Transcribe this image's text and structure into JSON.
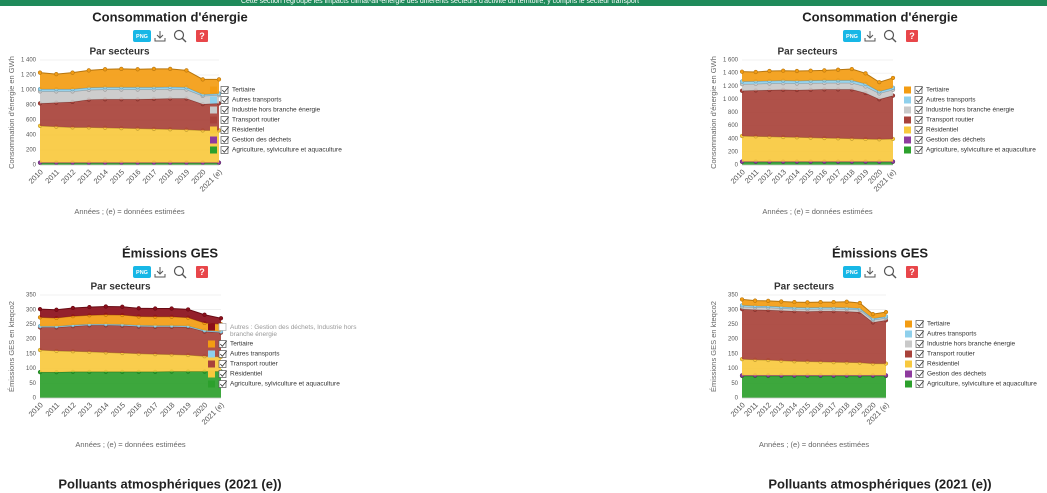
{
  "banner": "Cette section regroupe les impacts climat-air-énergie des différents secteurs d'activité du territoire, y compris le secteur transport",
  "toolbar": {
    "png": "PNG",
    "help": "?"
  },
  "next_sections": [
    "Polluants atmosphériques (2021 (e))",
    "Polluants atmosphériques (2021 (e))"
  ],
  "chart_data": [
    {
      "type": "area",
      "stacked": true,
      "legend": "right",
      "section_title": "Consommation d'énergie",
      "title": "Par secteurs",
      "y_label": "Consommation d'énergie en GWh",
      "x_label": "Années ; (e) = données estimées",
      "categories": [
        "2010",
        "2011",
        "2012",
        "2013",
        "2014",
        "2015",
        "2016",
        "2017",
        "2018",
        "2019",
        "2020",
        "2021 (e)"
      ],
      "ylim": [
        0,
        1400
      ],
      "yticks": [
        0,
        200,
        400,
        600,
        800,
        {
          "value": 1000,
          "label": "1 000"
        },
        {
          "value": 1200,
          "label": "1 200"
        },
        {
          "value": 1400,
          "label": "1 400"
        }
      ],
      "series": [
        {
          "name": "Tertiaire",
          "color": "#f39c12",
          "checked": true,
          "values": [
            220,
            200,
            220,
            230,
            240,
            245,
            240,
            245,
            240,
            225,
            200,
            190
          ]
        },
        {
          "name": "Autres transports",
          "color": "#8fd0ec",
          "checked": true,
          "values": [
            30,
            30,
            30,
            30,
            30,
            30,
            30,
            30,
            30,
            30,
            20,
            20
          ]
        },
        {
          "name": "Industrie hors branche énergie",
          "color": "#c9c9c9",
          "checked": true,
          "values": [
            160,
            150,
            140,
            130,
            130,
            130,
            130,
            125,
            125,
            120,
            110,
            110
          ]
        },
        {
          "name": "Transport routier",
          "color": "#a8423a",
          "checked": true,
          "values": [
            300,
            320,
            340,
            370,
            380,
            385,
            390,
            400,
            410,
            415,
            350,
            360
          ]
        },
        {
          "name": "Résidentiel",
          "color": "#f8c93e",
          "checked": true,
          "values": [
            490,
            480,
            470,
            470,
            465,
            460,
            455,
            450,
            445,
            440,
            430,
            430
          ]
        },
        {
          "name": "Gestion des déchets",
          "color": "#8e3a9e",
          "checked": true,
          "values": [
            2,
            2,
            2,
            2,
            2,
            2,
            2,
            2,
            2,
            2,
            2,
            2
          ]
        },
        {
          "name": "Agriculture, sylviculture et aquaculture",
          "color": "#2ca02c",
          "checked": true,
          "values": [
            30,
            30,
            30,
            30,
            30,
            30,
            30,
            30,
            30,
            30,
            30,
            30
          ]
        }
      ]
    },
    {
      "type": "area",
      "stacked": true,
      "legend": "right",
      "section_title": "Consommation d'énergie",
      "title": "Par secteurs",
      "y_label": "Consommation d'énergie en GWh",
      "x_label": "Années ; (e) = données estimées",
      "categories": [
        "2010",
        "2011",
        "2012",
        "2013",
        "2014",
        "2015",
        "2016",
        "2017",
        "2018",
        "2019",
        "2020",
        "2021 (e)"
      ],
      "ylim": [
        0,
        1600
      ],
      "yticks": [
        0,
        200,
        400,
        600,
        800,
        {
          "value": 1000,
          "label": "1 000"
        },
        {
          "value": 1200,
          "label": "1 200"
        },
        {
          "value": 1400,
          "label": "1 400"
        },
        {
          "value": 1600,
          "label": "1 600"
        }
      ],
      "series": [
        {
          "name": "Tertiaire",
          "color": "#f39c12",
          "checked": true,
          "values": [
            150,
            140,
            150,
            150,
            150,
            150,
            150,
            160,
            170,
            160,
            140,
            150
          ]
        },
        {
          "name": "Autres transports",
          "color": "#8fd0ec",
          "checked": true,
          "values": [
            40,
            40,
            40,
            40,
            40,
            40,
            40,
            40,
            40,
            40,
            30,
            30
          ]
        },
        {
          "name": "Industrie hors branche énergie",
          "color": "#c9c9c9",
          "checked": true,
          "values": [
            100,
            100,
            100,
            100,
            100,
            100,
            100,
            100,
            100,
            100,
            90,
            90
          ]
        },
        {
          "name": "Transport routier",
          "color": "#a8423a",
          "checked": true,
          "values": [
            690,
            700,
            710,
            720,
            720,
            730,
            740,
            745,
            750,
            700,
            610,
            660
          ]
        },
        {
          "name": "Résidentiel",
          "color": "#f8c93e",
          "checked": true,
          "values": [
            390,
            385,
            380,
            375,
            370,
            365,
            360,
            355,
            350,
            345,
            340,
            345
          ]
        },
        {
          "name": "Gestion des déchets",
          "color": "#8e3a9e",
          "checked": true,
          "values": [
            2,
            2,
            2,
            2,
            2,
            2,
            2,
            2,
            2,
            2,
            2,
            2
          ]
        },
        {
          "name": "Agriculture, sylviculture et aquaculture",
          "color": "#2ca02c",
          "checked": true,
          "values": [
            50,
            50,
            50,
            50,
            50,
            50,
            50,
            50,
            50,
            50,
            50,
            50
          ]
        }
      ]
    },
    {
      "type": "area",
      "stacked": true,
      "legend": "right",
      "section_title": "Émissions GES",
      "title": "Par secteurs",
      "y_label": "Émissions GES en kteqco2",
      "x_label": "Années ; (e) = données estimées",
      "categories": [
        "2010",
        "2011",
        "2012",
        "2013",
        "2014",
        "2015",
        "2016",
        "2017",
        "2018",
        "2019",
        "2020",
        "2021 (e)"
      ],
      "ylim": [
        0,
        350
      ],
      "yticks": [
        0,
        50,
        100,
        150,
        200,
        250,
        300,
        350
      ],
      "series": [
        {
          "name": "Autres : Gestion des déchets, Industrie hors branche énergie",
          "color": "#8b0e1a",
          "checked": false,
          "values": [
            28,
            28,
            28,
            28,
            28,
            28,
            28,
            28,
            28,
            28,
            28,
            20
          ]
        },
        {
          "name": "Tertiaire",
          "color": "#f39c12",
          "checked": true,
          "values": [
            30,
            28,
            30,
            30,
            32,
            32,
            30,
            30,
            30,
            28,
            25,
            25
          ]
        },
        {
          "name": "Autres transports",
          "color": "#8fd0ec",
          "checked": true,
          "values": [
            4,
            4,
            4,
            4,
            4,
            4,
            4,
            4,
            4,
            4,
            4,
            4
          ]
        },
        {
          "name": "Transport routier",
          "color": "#a8423a",
          "checked": true,
          "values": [
            77,
            80,
            85,
            90,
            92,
            93,
            92,
            93,
            94,
            95,
            84,
            82
          ]
        },
        {
          "name": "Résidentiel",
          "color": "#f8c93e",
          "checked": true,
          "values": [
            75,
            72,
            70,
            68,
            66,
            64,
            62,
            60,
            58,
            56,
            52,
            50
          ]
        },
        {
          "name": "Agriculture, sylviculture et aquaculture",
          "color": "#2ca02c",
          "checked": true,
          "values": [
            88,
            88,
            89,
            89,
            89,
            89,
            89,
            89,
            90,
            90,
            90,
            90
          ]
        }
      ]
    },
    {
      "type": "area",
      "stacked": true,
      "legend": "right",
      "section_title": "Émissions GES",
      "title": "Par secteurs",
      "y_label": "Émissions GES en kteqco2",
      "x_label": "Années ; (e) = données estimées",
      "categories": [
        "2010",
        "2011",
        "2012",
        "2013",
        "2014",
        "2015",
        "2016",
        "2017",
        "2018",
        "2019",
        "2020",
        "2021 (e)"
      ],
      "ylim": [
        0,
        350
      ],
      "yticks": [
        0,
        50,
        100,
        150,
        200,
        250,
        300,
        350
      ],
      "series": [
        {
          "name": "Tertiaire",
          "color": "#f39c12",
          "checked": true,
          "values": [
            20,
            18,
            18,
            18,
            18,
            18,
            18,
            18,
            20,
            18,
            15,
            15
          ]
        },
        {
          "name": "Autres transports",
          "color": "#8fd0ec",
          "checked": true,
          "values": [
            5,
            5,
            5,
            5,
            5,
            5,
            5,
            5,
            5,
            5,
            5,
            5
          ]
        },
        {
          "name": "Industrie hors branche énergie",
          "color": "#c9c9c9",
          "checked": true,
          "values": [
            8,
            8,
            8,
            8,
            8,
            8,
            8,
            8,
            8,
            8,
            8,
            8
          ]
        },
        {
          "name": "Transport routier",
          "color": "#a8423a",
          "checked": true,
          "values": [
            170,
            170,
            170,
            170,
            170,
            170,
            172,
            173,
            173,
            172,
            140,
            147
          ]
        },
        {
          "name": "Résidentiel",
          "color": "#f8c93e",
          "checked": true,
          "values": [
            55,
            53,
            52,
            50,
            48,
            47,
            46,
            45,
            44,
            43,
            40,
            40
          ]
        },
        {
          "name": "Gestion des déchets",
          "color": "#8e3a9e",
          "checked": true,
          "values": [
            2,
            2,
            2,
            2,
            2,
            2,
            2,
            2,
            2,
            2,
            2,
            2
          ]
        },
        {
          "name": "Agriculture, sylviculture et aquaculture",
          "color": "#2ca02c",
          "checked": true,
          "values": [
            75,
            75,
            75,
            75,
            75,
            75,
            75,
            75,
            75,
            75,
            75,
            75
          ]
        }
      ]
    }
  ]
}
